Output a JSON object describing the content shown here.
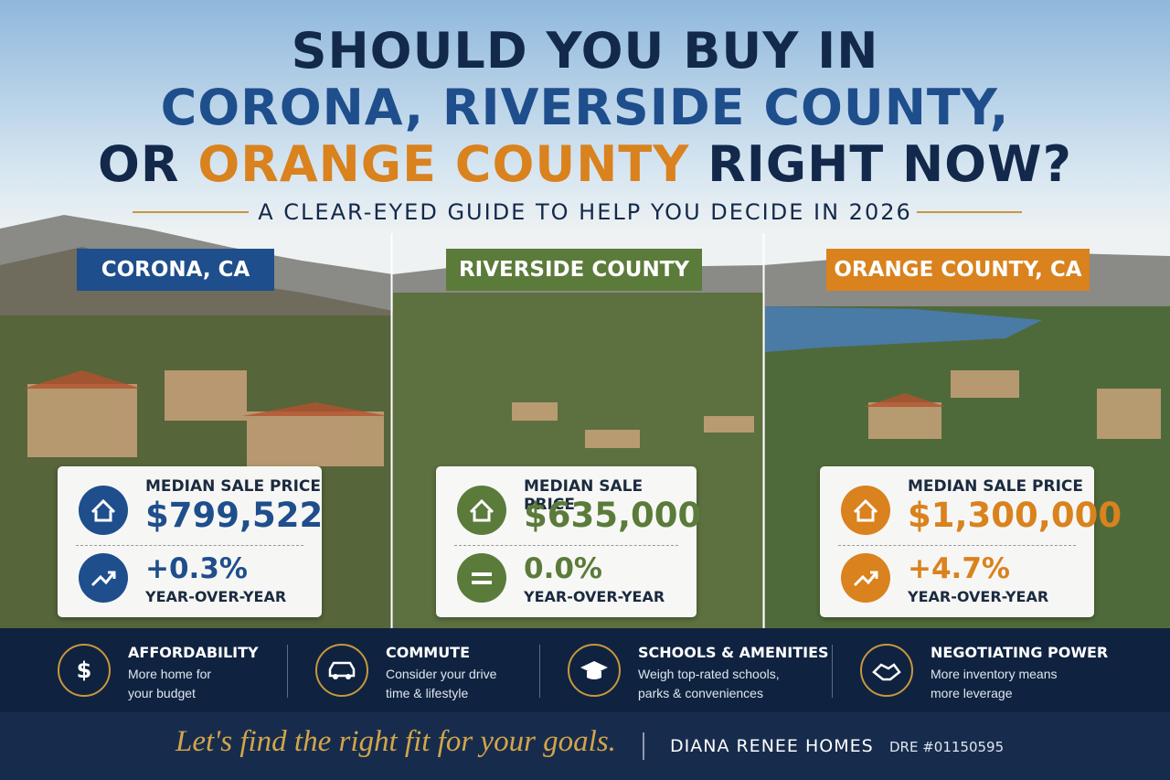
{
  "header": {
    "title_line1": "SHOULD YOU BUY IN",
    "title_line2": "CORONA, RIVERSIDE COUNTY,",
    "title_line3": [
      "OR ",
      "ORANGE COUNTY",
      " RIGHT NOW?"
    ],
    "subtitle": "A CLEAR-EYED GUIDE TO HELP YOU DECIDE IN 2026"
  },
  "panels": [
    {
      "label": "CORONA, CA",
      "metric_label": "MEDIAN SALE PRICE",
      "price": "$799,522",
      "change": "+0.3%",
      "change_label": "YEAR-OVER-YEAR"
    },
    {
      "label": "RIVERSIDE COUNTY",
      "metric_label": "MEDIAN SALE PRICE",
      "price": "$635,000",
      "change": "0.0%",
      "change_label": "YEAR-OVER-YEAR"
    },
    {
      "label": "ORANGE COUNTY, CA",
      "metric_label": "MEDIAN SALE PRICE",
      "price": "$1,300,000",
      "change": "+4.7%",
      "change_label": "YEAR-OVER-YEAR"
    }
  ],
  "features": [
    {
      "title": "AFFORDABILITY",
      "lines": [
        "More home for",
        "your budget"
      ]
    },
    {
      "title": "COMMUTE",
      "lines": [
        "Consider your drive",
        "time & lifestyle"
      ]
    },
    {
      "title": "SCHOOLS & AMENITIES",
      "lines": [
        "Weigh top-rated schools,",
        "parks & conveniences"
      ]
    },
    {
      "title": "NEGOTIATING POWER",
      "lines": [
        "More inventory means",
        "more leverage"
      ]
    }
  ],
  "footer": {
    "tagline": "Let's find the right fit for your goals.",
    "brand": "DIANA RENEE HOMES",
    "license": "DRE #01150595"
  }
}
